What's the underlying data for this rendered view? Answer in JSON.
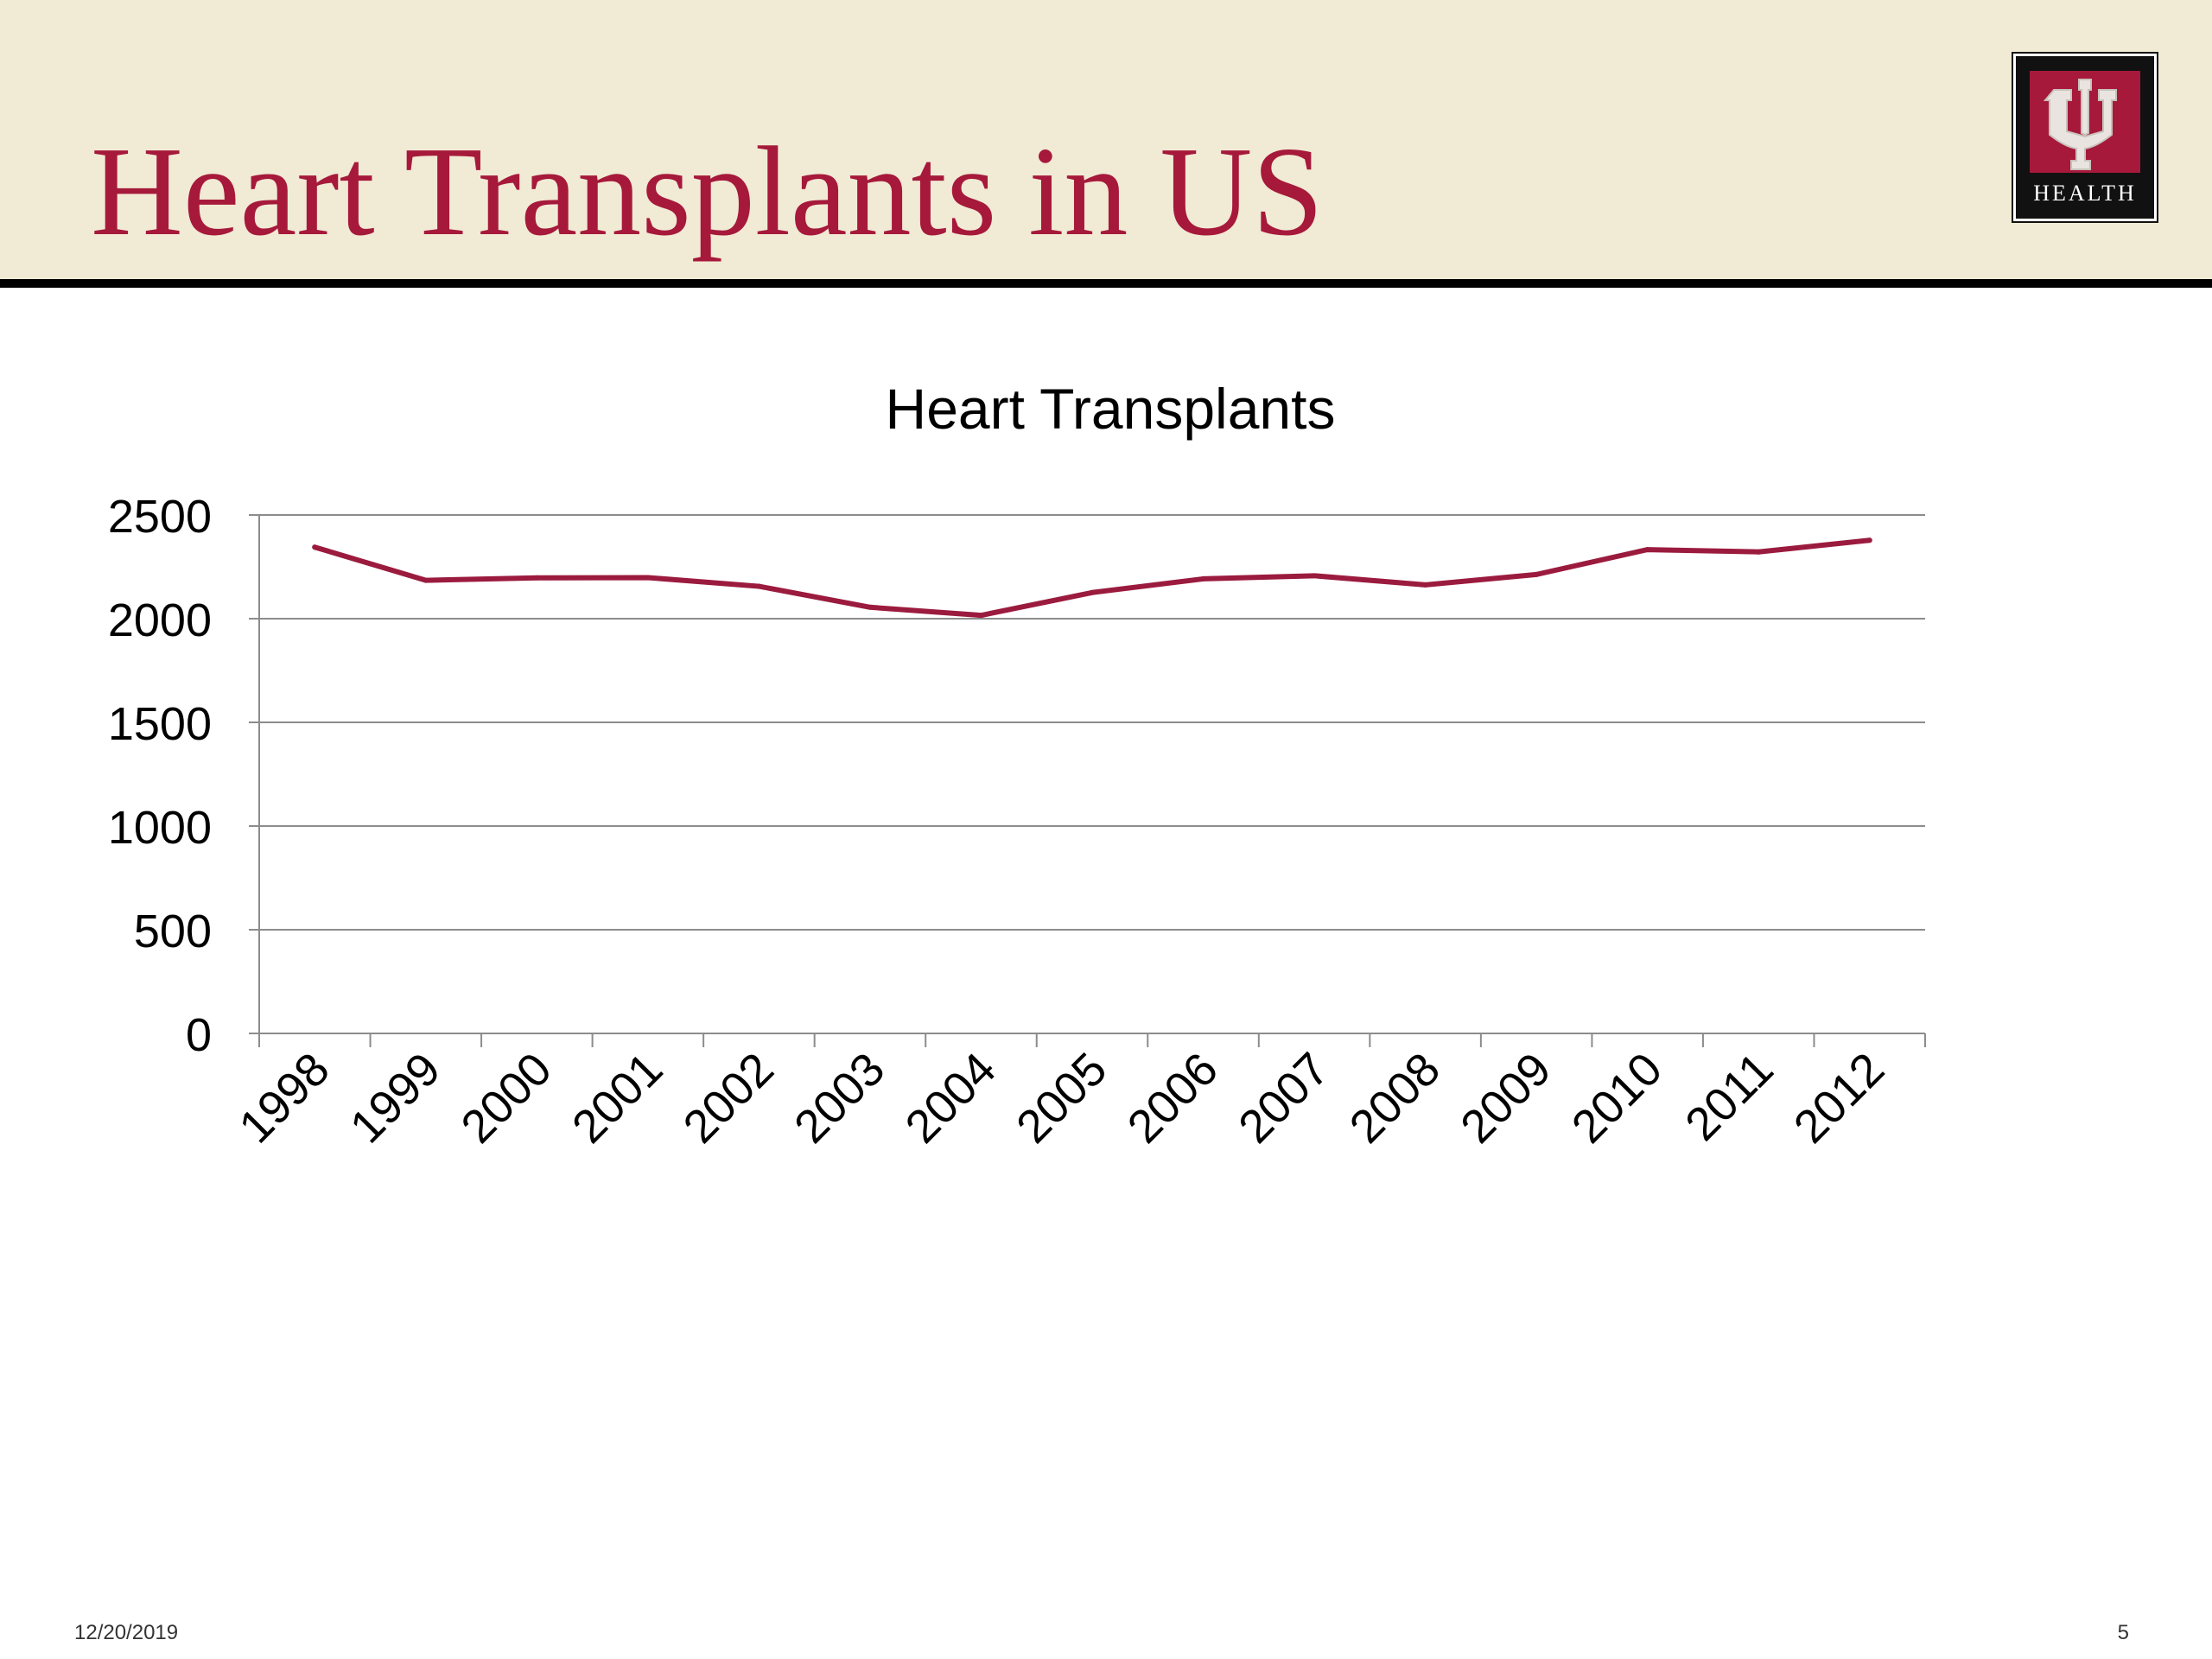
{
  "slide": {
    "title": "Heart Transplants in US",
    "date": "12/20/2019",
    "page_number": "5"
  },
  "logo": {
    "wordmark": "HEALTH",
    "icon": "iu-trident-icon"
  },
  "colors": {
    "header_bg": "#f1ead4",
    "title": "#a6193b",
    "line": "#9b1b3e",
    "gridline": "#8c8c8c"
  },
  "chart_data": {
    "type": "line",
    "title": "Heart Transplants",
    "categories": [
      "1998",
      "1999",
      "2000",
      "2001",
      "2002",
      "2003",
      "2004",
      "2005",
      "2006",
      "2007",
      "2008",
      "2009",
      "2010",
      "2011",
      "2012"
    ],
    "series": [
      {
        "values": [
          2345,
          2185,
          2197,
          2198,
          2156,
          2055,
          2016,
          2126,
          2192,
          2207,
          2163,
          2213,
          2333,
          2322,
          2378
        ]
      }
    ],
    "ylim": [
      0,
      2500
    ],
    "yticks": [
      0,
      500,
      1000,
      1500,
      2000,
      2500
    ],
    "grid": true,
    "legend": false,
    "xlabel": "",
    "ylabel": ""
  }
}
